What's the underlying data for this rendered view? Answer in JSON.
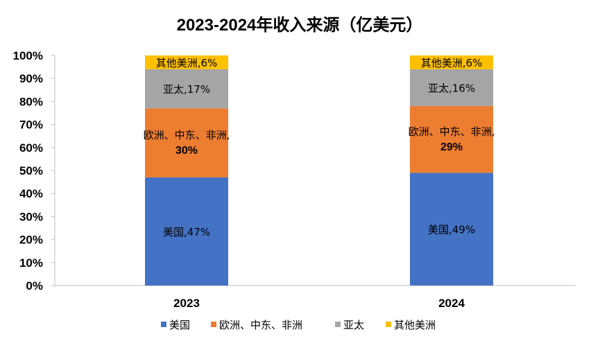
{
  "chart_data": {
    "type": "bar",
    "stacked": true,
    "title": "2023-2024年收入来源（亿美元）",
    "categories": [
      "2023",
      "2024"
    ],
    "yticks": [
      "0%",
      "10%",
      "20%",
      "30%",
      "40%",
      "50%",
      "60%",
      "70%",
      "80%",
      "90%",
      "100%"
    ],
    "ylim": [
      0,
      100
    ],
    "series": [
      {
        "name": "美国",
        "values": [
          47,
          49
        ],
        "color": "#4472C4",
        "labels": [
          "美国,47%",
          "美国,49%"
        ]
      },
      {
        "name": "欧洲、中东、非洲",
        "values": [
          30,
          29
        ],
        "color": "#ED7D31",
        "labels": [
          [
            "欧洲、中东、非洲,",
            "30%"
          ],
          [
            "欧洲、中东、非洲,",
            "29%"
          ]
        ]
      },
      {
        "name": "亚太",
        "values": [
          17,
          16
        ],
        "color": "#A5A5A5",
        "labels": [
          "亚太,17%",
          "亚太,16%"
        ]
      },
      {
        "name": "其他美洲",
        "values": [
          6,
          6
        ],
        "color": "#FFC000",
        "labels": [
          "其他美洲,6%",
          "其他美洲,6%"
        ]
      }
    ],
    "legend": {
      "placement": "bottom"
    },
    "grid": false
  }
}
